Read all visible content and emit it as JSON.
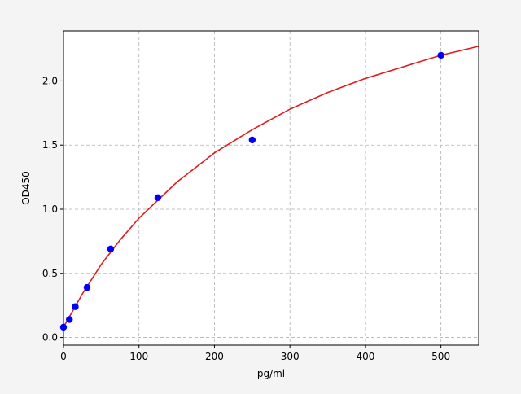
{
  "chart_data": {
    "type": "scatter",
    "title": "",
    "xlabel": "pg/ml",
    "ylabel": "OD450",
    "xlim": [
      0,
      550
    ],
    "ylim": [
      -0.06,
      2.39
    ],
    "xticks": [
      0,
      100,
      200,
      300,
      400,
      500
    ],
    "yticks": [
      0.0,
      0.5,
      1.0,
      1.5,
      2.0
    ],
    "xtick_labels": [
      "0",
      "100",
      "200",
      "300",
      "400",
      "500"
    ],
    "ytick_labels": [
      "0.0",
      "0.5",
      "1.0",
      "1.5",
      "2.0"
    ],
    "grid": true,
    "points": {
      "color": "#0000ff",
      "x": [
        0,
        7.8,
        15.6,
        31.25,
        62.5,
        125,
        250,
        500
      ],
      "y": [
        0.08,
        0.14,
        0.24,
        0.39,
        0.69,
        1.09,
        1.54,
        2.2
      ]
    },
    "fit_curve": {
      "color": "#e31a1c",
      "x": [
        0,
        25,
        50,
        75,
        100,
        150,
        200,
        250,
        300,
        350,
        400,
        450,
        500,
        550
      ],
      "y": [
        0.08,
        0.34,
        0.57,
        0.76,
        0.93,
        1.21,
        1.44,
        1.62,
        1.78,
        1.91,
        2.02,
        2.11,
        2.2,
        2.27
      ]
    }
  }
}
